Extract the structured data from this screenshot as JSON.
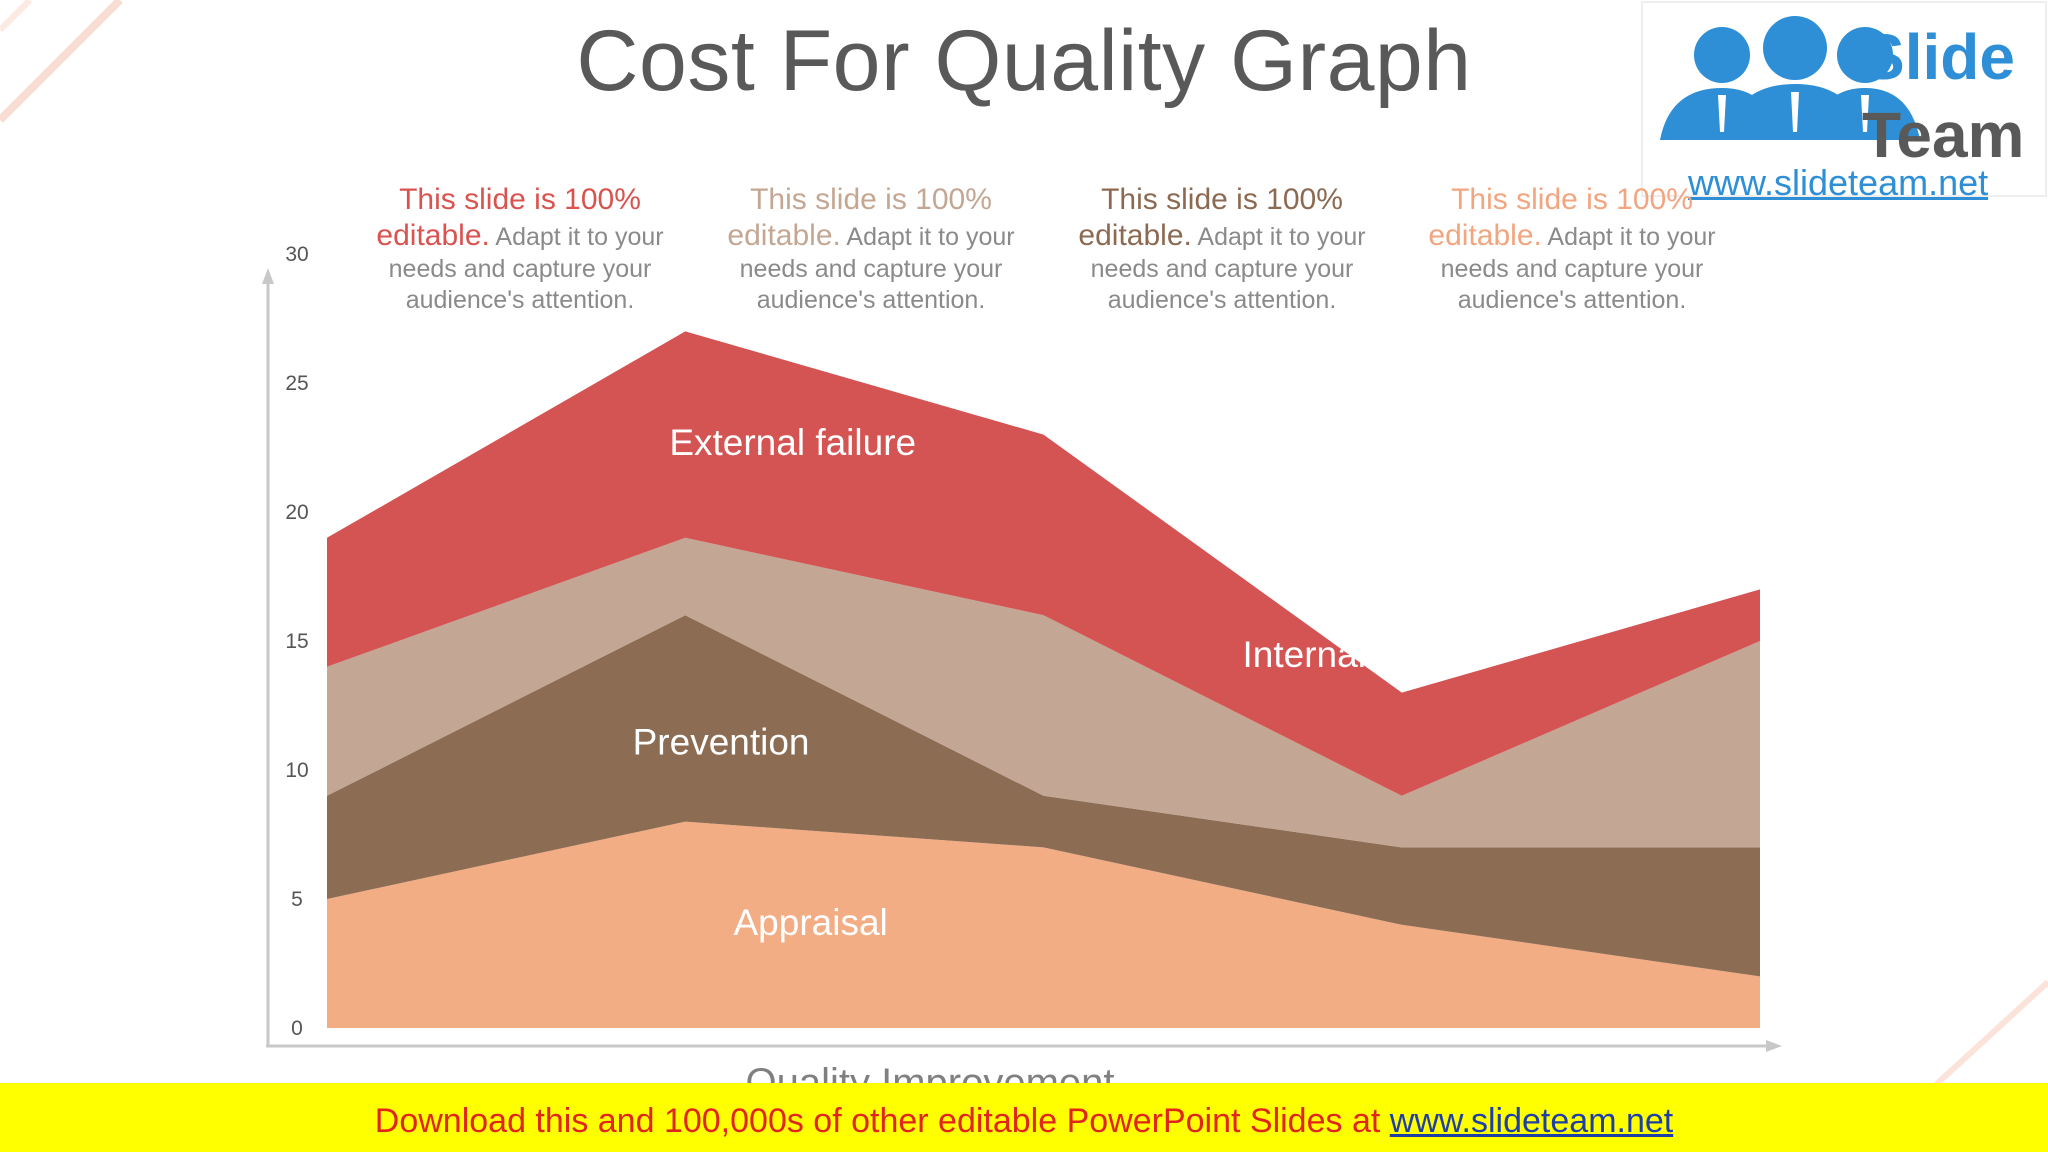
{
  "slide": {
    "title": "Cost For Quality Graph"
  },
  "logo": {
    "word1": "Slide",
    "word2": "Team",
    "url": "www.slideteam.net"
  },
  "notes": [
    {
      "highlight": "This slide is 100% editable.",
      "body": " Adapt it to your needs and capture your audience's attention.",
      "color": "#d9534f"
    },
    {
      "highlight": "This slide is 100% editable.",
      "body": " Adapt it to your needs and capture your audience's attention.",
      "color": "#c4a793"
    },
    {
      "highlight": "This slide is 100% editable.",
      "body": " Adapt it to your needs and capture your audience's attention.",
      "color": "#8c6a52"
    },
    {
      "highlight": "This slide is 100% editable.",
      "body": " Adapt it to your needs and capture your audience's attention.",
      "color": "#f2a57f"
    }
  ],
  "chart_data": {
    "type": "area",
    "stacked": true,
    "title": "",
    "xlabel": "Quality Improvement",
    "ylabel": "",
    "ylim": [
      0,
      30
    ],
    "yticks": [
      "0",
      "5",
      "10",
      "15",
      "20",
      "25",
      "30"
    ],
    "x": [
      1,
      2,
      3,
      4,
      5
    ],
    "series": [
      {
        "name": "Appraisal",
        "values": [
          5,
          8,
          7,
          4,
          2
        ],
        "color": "#f2ad84"
      },
      {
        "name": "Prevention",
        "values": [
          4,
          8,
          2,
          3,
          5
        ],
        "color": "#8c6c52"
      },
      {
        "name": "Internal Failure",
        "values": [
          5,
          3,
          7,
          2,
          8
        ],
        "color": "#c3a694"
      },
      {
        "name": "External failure",
        "values": [
          5,
          8,
          7,
          4,
          2
        ],
        "color": "#d45454"
      }
    ],
    "label_anchor": [
      [
        2.35,
        3.6
      ],
      [
        2.1,
        10.6
      ],
      [
        3.9,
        14.0
      ],
      [
        2.3,
        22.2
      ]
    ]
  },
  "banner": {
    "text": "Download this and 100,000s of other editable PowerPoint Slides at ",
    "link": "www.slideteam.net"
  }
}
